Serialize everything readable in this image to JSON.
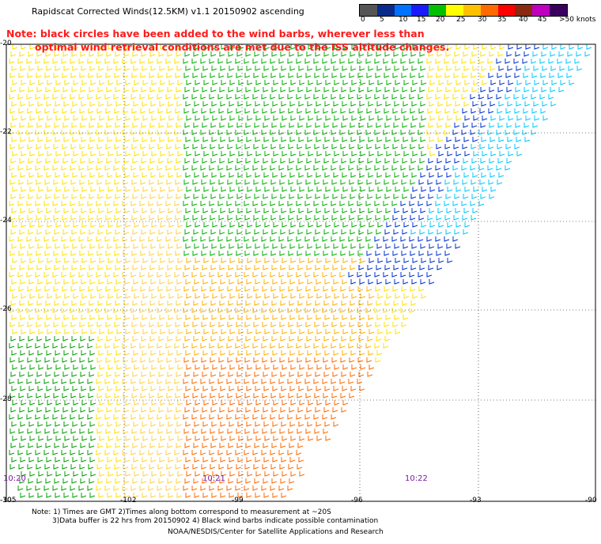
{
  "title": "Rapidscat Corrected Winds(12.5KM) v1.1 20150902 ascending",
  "note_lines": [
    "Note: black circles have been added to the wind barbs, wherever less than",
    "optimal wind retrieval conditions are met due to the ISS altitude changes."
  ],
  "color_scale": {
    "labels": [
      "0",
      "5",
      "10",
      "15",
      "20",
      "25",
      "30",
      "35",
      "40",
      "45",
      ">50 knots"
    ],
    "colors": [
      "#555555",
      "#0a2a8c",
      "#0072ff",
      "#1a1aff",
      "#00c000",
      "#ffff00",
      "#ffc000",
      "#ff6a00",
      "#ff0000",
      "#8a2a10",
      "#c000c0",
      "#3a0060"
    ]
  },
  "latitude_labels": [
    "-20",
    "-22",
    "-24",
    "-26",
    "-28",
    "-30"
  ],
  "longitude_labels": [
    "-105",
    "-102",
    "-99",
    "-96",
    "-93",
    "-90"
  ],
  "time_labels": [
    "10:20",
    "10:21",
    "10:22"
  ],
  "footer": {
    "line1": "Note: 1) Times are GMT 2)Times along bottom correspond to measurement at ~20S",
    "line2": "3)Data buffer is 22 hrs from 20150902 4) Black wind barbs indicate possible contamination",
    "line3": "NOAA/NESDIS/Center for Satellite Applications and Research"
  }
}
